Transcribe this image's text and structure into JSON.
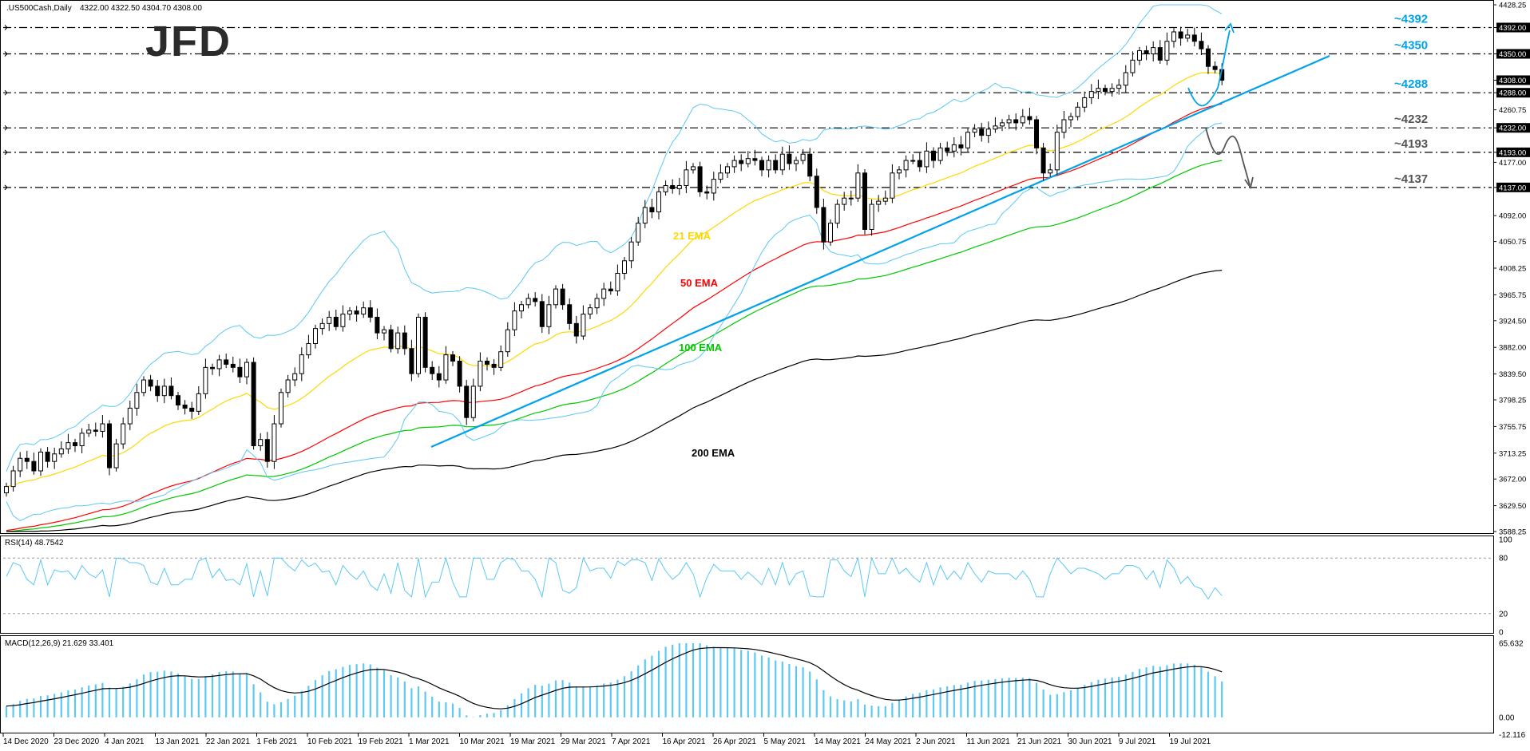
{
  "header": {
    "symbol_info": ".US500Cash,Daily",
    "ohlc": "4322.00 4322.50 4304.70 4308.00"
  },
  "logo": "JFD",
  "rsi_label": "RSI(14) 48.7542",
  "macd_label": "MACD(12,26,9) 21.629 33.401",
  "colors": {
    "bull_candle": "#ffffff",
    "bear_candle": "#000000",
    "ema21": "#ffd700",
    "ema50": "#ff0000",
    "ema100": "#00c800",
    "ema200": "#000000",
    "bollinger": "#5bc8f5",
    "trendline": "#00a2e8",
    "level_cyan": "#00a2e8",
    "level_grey": "#555555",
    "rsi": "#5bc8f5",
    "macd_hist": "#5bc8f5",
    "macd_signal": "#000000"
  },
  "chart_data": {
    "type": "candlestick",
    "instrument": ".US500Cash",
    "timeframe": "Daily",
    "price_axis_ticks": [
      4428.25,
      4392.0,
      4350.0,
      4308.0,
      4288.0,
      4260.75,
      4232.0,
      4193.0,
      4177.0,
      4137.0,
      4092.0,
      4050.75,
      4008.25,
      3965.75,
      3924.5,
      3882.0,
      3839.5,
      3798.25,
      3755.75,
      3713.25,
      3672.0,
      3629.5,
      3588.25
    ],
    "highlighted_price_ticks": [
      4392.0,
      4350.0,
      4308.0,
      4288.0,
      4232.0,
      4193.0,
      4137.0
    ],
    "ylim": [
      3588.25,
      4428.25
    ],
    "date_labels": [
      "14 Dec 2020",
      "23 Dec 2020",
      "4 Jan 2021",
      "13 Jan 2021",
      "22 Jan 2021",
      "1 Feb 2021",
      "10 Feb 2021",
      "19 Feb 2021",
      "1 Mar 2021",
      "10 Mar 2021",
      "19 Mar 2021",
      "29 Mar 2021",
      "7 Apr 2021",
      "16 Apr 2021",
      "26 Apr 2021",
      "5 May 2021",
      "14 May 2021",
      "24 May 2021",
      "2 Jun 2021",
      "11 Jun 2021",
      "21 Jun 2021",
      "30 Jun 2021",
      "9 Jul 2021",
      "19 Jul 2021"
    ],
    "levels": [
      {
        "label": "~4392",
        "value": 4392,
        "color": "#00a2e8"
      },
      {
        "label": "~4350",
        "value": 4350,
        "color": "#00a2e8"
      },
      {
        "label": "~4288",
        "value": 4288,
        "color": "#00a2e8"
      },
      {
        "label": "~4232",
        "value": 4232,
        "color": "#555555"
      },
      {
        "label": "~4193",
        "value": 4193,
        "color": "#555555"
      },
      {
        "label": "~4137",
        "value": 4137,
        "color": "#555555"
      }
    ],
    "indicator_labels": [
      {
        "text": "21 EMA",
        "color": "#ffd700"
      },
      {
        "text": "50 EMA",
        "color": "#ff0000"
      },
      {
        "text": "100 EMA",
        "color": "#00c800"
      },
      {
        "text": "200 EMA",
        "color": "#000000"
      }
    ],
    "ema_endpoints": {
      "ema21": [
        3660,
        4318
      ],
      "ema50": [
        3590,
        4270
      ],
      "ema100": [
        3588,
        4180
      ],
      "ema200": [
        3588,
        4005
      ]
    },
    "closes": [
      3660,
      3685,
      3705,
      3700,
      3685,
      3715,
      3700,
      3712,
      3720,
      3730,
      3725,
      3745,
      3750,
      3748,
      3760,
      3690,
      3728,
      3760,
      3785,
      3810,
      3830,
      3820,
      3805,
      3820,
      3805,
      3790,
      3785,
      3780,
      3808,
      3850,
      3848,
      3862,
      3855,
      3850,
      3835,
      3858,
      3725,
      3735,
      3700,
      3760,
      3810,
      3830,
      3840,
      3870,
      3888,
      3912,
      3920,
      3930,
      3915,
      3935,
      3940,
      3935,
      3945,
      3930,
      3905,
      3910,
      3880,
      3905,
      3880,
      3840,
      3930,
      3850,
      3840,
      3830,
      3870,
      3860,
      3820,
      3770,
      3820,
      3860,
      3855,
      3850,
      3875,
      3910,
      3940,
      3950,
      3960,
      3955,
      3915,
      3950,
      3975,
      3950,
      3920,
      3900,
      3935,
      3945,
      3960,
      3975,
      3972,
      4000,
      4020,
      4050,
      4080,
      4105,
      4098,
      4130,
      4140,
      4135,
      4140,
      4165,
      4170,
      4130,
      4128,
      4150,
      4160,
      4170,
      4180,
      4175,
      4183,
      4180,
      4165,
      4180,
      4165,
      4190,
      4175,
      4180,
      4190,
      4155,
      4105,
      4050,
      4080,
      4110,
      4120,
      4120,
      4160,
      4070,
      4110,
      4115,
      4120,
      4160,
      4165,
      4180,
      4180,
      4170,
      4195,
      4180,
      4200,
      4195,
      4205,
      4200,
      4225,
      4230,
      4220,
      4230,
      4235,
      4240,
      4245,
      4240,
      4250,
      4245,
      4200,
      4160,
      4165,
      4225,
      4245,
      4250,
      4265,
      4280,
      4290,
      4295,
      4290,
      4295,
      4300,
      4320,
      4340,
      4355,
      4350,
      4360,
      4340,
      4370,
      4385,
      4375,
      4380,
      4370,
      4358,
      4330,
      4325,
      4308
    ],
    "rsi": {
      "period": 14,
      "value": 48.7542,
      "levels": [
        80,
        20
      ],
      "ylim": [
        0,
        100
      ]
    },
    "macd": {
      "fast": 12,
      "slow": 26,
      "signal": 9,
      "macd_value": 21.629,
      "signal_value": 33.401,
      "ylim": [
        -12.116,
        65.632
      ]
    }
  }
}
